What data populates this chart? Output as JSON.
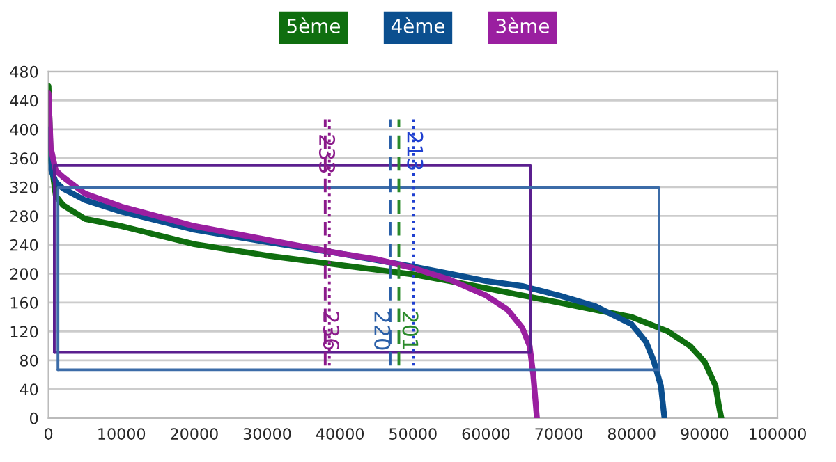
{
  "chart_data": {
    "type": "line",
    "xlim": [
      0,
      100000
    ],
    "xticks": [
      0,
      10000,
      20000,
      30000,
      40000,
      50000,
      60000,
      70000,
      80000,
      90000,
      100000
    ],
    "ylim": [
      0,
      480
    ],
    "yticks": [
      0,
      40,
      80,
      120,
      160,
      200,
      240,
      280,
      320,
      360,
      400,
      440,
      480
    ],
    "grid": "y",
    "legend": "top",
    "marker": "none",
    "series": [
      {
        "name": "5ème",
        "color": "#0f6e0f",
        "line_style": "solid",
        "x": [
          0,
          300,
          1000,
          2000,
          5000,
          10000,
          20000,
          30000,
          40000,
          50000,
          55000,
          60000,
          65000,
          70000,
          75000,
          80000,
          85000,
          88000,
          90000,
          91500,
          92000,
          92300
        ],
        "values": [
          460,
          360,
          308,
          295,
          276,
          266,
          241,
          225,
          212,
          199,
          190,
          180,
          170,
          160,
          150,
          140,
          120,
          100,
          78,
          45,
          15,
          0
        ]
      },
      {
        "name": "4ème",
        "color": "#0b4f8f",
        "line_style": "solid",
        "x": [
          0,
          300,
          1000,
          2000,
          5000,
          10000,
          20000,
          30000,
          40000,
          50000,
          55000,
          60000,
          65000,
          70000,
          75000,
          80000,
          82000,
          83000,
          84000,
          84500
        ],
        "values": [
          400,
          345,
          327,
          318,
          302,
          286,
          261,
          244,
          228,
          210,
          200,
          190,
          183,
          170,
          155,
          130,
          105,
          80,
          45,
          0
        ]
      },
      {
        "name": "3ème",
        "color": "#9a1fa0",
        "line_style": "solid",
        "x": [
          0,
          300,
          1000,
          2000,
          5000,
          10000,
          20000,
          30000,
          40000,
          45000,
          50000,
          55000,
          60000,
          63000,
          65000,
          66000,
          66500,
          67000
        ],
        "values": [
          450,
          375,
          343,
          334,
          311,
          293,
          266,
          247,
          228,
          220,
          208,
          192,
          170,
          150,
          125,
          100,
          60,
          0
        ]
      },
      {
        "color": "#5b1f8f",
        "line_style": "solid",
        "x": [
          800,
          800,
          66100,
          66100
        ],
        "values": [
          91,
          350,
          350,
          91
        ]
      },
      {
        "color": "#5b1f8f",
        "line_style": "solid",
        "x": [
          800,
          66100
        ],
        "values": [
          91,
          91
        ]
      },
      {
        "color": "#3c6ca8",
        "line_style": "solid",
        "x": [
          1300,
          1300,
          83750,
          83750
        ],
        "values": [
          67,
          319,
          319,
          67
        ]
      },
      {
        "color": "#3c6ca8",
        "line_style": "solid",
        "x": [
          1300,
          83750
        ],
        "values": [
          67,
          67
        ]
      },
      {
        "color": "#8b1a8b",
        "line_style": "dashed",
        "x": [
          37960,
          37960
        ],
        "values": [
          73,
          414
        ]
      },
      {
        "color": "#8b1a8b",
        "line_style": "dotted",
        "x": [
          38530,
          38530
        ],
        "values": [
          73,
          414
        ]
      },
      {
        "color": "#2a5fa8",
        "line_style": "dashed",
        "x": [
          46860,
          46860
        ],
        "values": [
          73,
          414
        ]
      },
      {
        "color": "#2a8a2a",
        "line_style": "dashed",
        "x": [
          48060,
          48060
        ],
        "values": [
          73,
          414
        ]
      },
      {
        "color": "#2040d0",
        "line_style": "dotted",
        "x": [
          50040,
          50040
        ],
        "values": [
          73,
          414
        ]
      }
    ],
    "annotations": [
      {
        "text": "233",
        "x": 37960,
        "y": 366
      },
      {
        "text": "236",
        "x": 38530,
        "y": 121
      },
      {
        "text": "220",
        "x": 46860,
        "y": 121
      },
      {
        "text": "201",
        "x": 48060,
        "y": 121
      },
      {
        "text": "213",
        "x": 50040,
        "y": 370
      }
    ]
  }
}
